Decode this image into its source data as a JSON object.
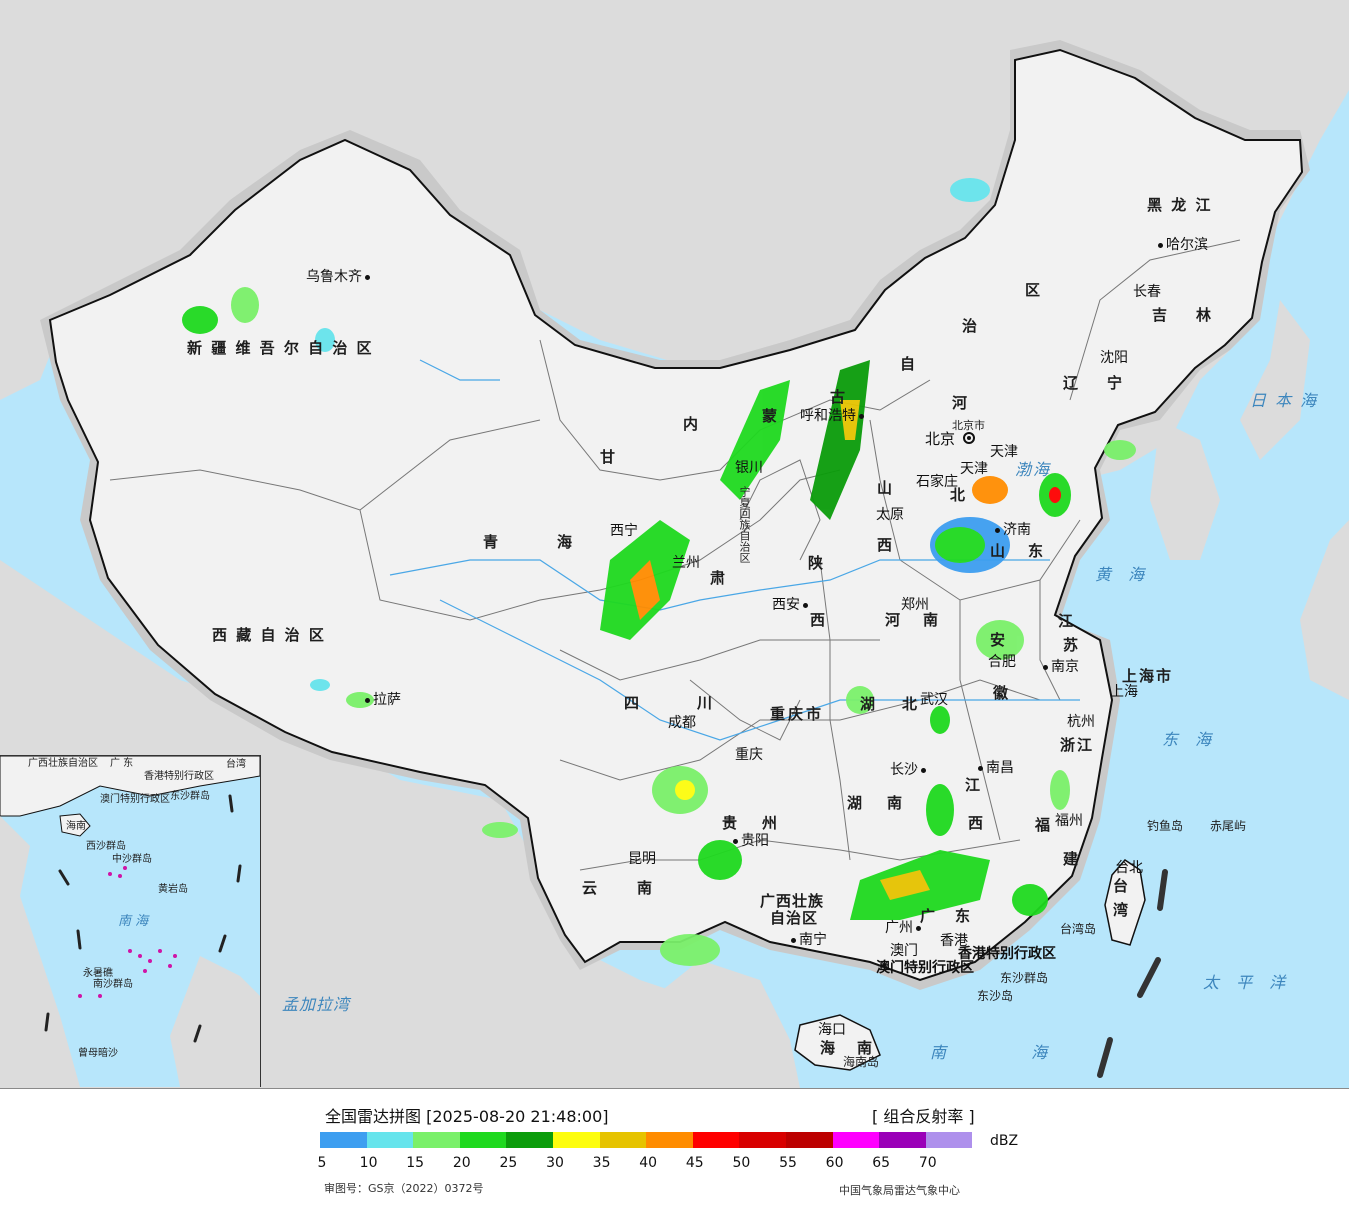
{
  "map": {
    "regions": {
      "xinjiang": "新 疆 维 吾 尔 自 治 区",
      "xizang": "西 藏 自 治 区",
      "qinghai_1": "青",
      "qinghai_2": "海",
      "gansu_1": "甘",
      "gansu_2": "肃",
      "neimenggu_1": "内",
      "neimenggu_2": "蒙",
      "neimenggu_3": "古",
      "neimenggu_4": "自",
      "neimenggu_5": "治",
      "neimenggu_6": "区",
      "ningxia": "宁夏回族自治区",
      "shaanxi_1": "陕",
      "shaanxi_2": "西",
      "shanxi_1": "山",
      "shanxi_2": "西",
      "hebei_1": "河",
      "hebei_2": "北",
      "shandong_1": "山",
      "shandong_2": "东",
      "henan_1": "河",
      "henan_2": "南",
      "sichuan_1": "四",
      "sichuan_2": "川",
      "chongqing": "重庆市",
      "hubei_1": "湖",
      "hubei_2": "北",
      "hunan_1": "湖",
      "hunan_2": "南",
      "guizhou_1": "贵",
      "guizhou_2": "州",
      "yunnan_1": "云",
      "yunnan_2": "南",
      "guangxi_1": "广西壮族",
      "guangxi_2": "自治区",
      "guangdong_1": "广",
      "guangdong_2": "东",
      "jiangxi_1": "江",
      "jiangxi_2": "西",
      "fujian_1": "福",
      "fujian_2": "建",
      "zhejiang": "浙江",
      "anhui_1": "安",
      "anhui_2": "徽",
      "jiangsu_1": "江",
      "jiangsu_2": "苏",
      "shanghai": "上海市",
      "liaoning_1": "辽",
      "liaoning_2": "宁",
      "jilin_1": "吉",
      "jilin_2": "林",
      "heilongjiang": "黑 龙 江",
      "hainan_1": "海",
      "hainan_2": "南",
      "taiwan_1": "台",
      "taiwan_2": "湾",
      "tianjin": "天津",
      "beijing": "北京",
      "beijing_small": "北京市",
      "hk_sar": "香港特别行政区",
      "macau_sar": "澳门特别行政区"
    },
    "cities": {
      "urumqi": "乌鲁木齐",
      "lhasa": "拉萨",
      "xining": "西宁",
      "lanzhou": "兰州",
      "yinchuan": "银川",
      "huhehaote": "呼和浩特",
      "shijiazhuang": "石家庄",
      "taiyuan": "太原",
      "jinan": "济南",
      "zhengzhou": "郑州",
      "xian": "西安",
      "chengdu": "成都",
      "chongqing": "重庆",
      "wuhan": "武汉",
      "hefei": "合肥",
      "nanjing": "南京",
      "shanghai": "上海",
      "hangzhou": "杭州",
      "nanchang": "南昌",
      "changsha": "长沙",
      "guiyang": "贵阳",
      "kunming": "昆明",
      "nanning": "南宁",
      "guangzhou": "广州",
      "hongkong": "香港",
      "macau": "澳门",
      "fuzhou": "福州",
      "taibei": "台北",
      "haikou": "海口",
      "shenyang": "沈阳",
      "changchun": "长春",
      "haerbin": "哈尔滨",
      "tianjin_city": "天津"
    },
    "islands": {
      "diaoyu": "钓鱼岛",
      "chiwei": "赤尾屿",
      "taiwan_island": "台湾岛",
      "dongsha": "东沙群岛",
      "dongsha_2": "东沙岛",
      "hainan_island": "海南岛"
    },
    "seas": {
      "bohai": "渤海",
      "huanghai": "黄 海",
      "donghai": "东 海",
      "nanhai": "南 海",
      "taipingyang": "太 平 洋",
      "ribenhai": "日 本 海",
      "mengjiala": "孟加拉湾"
    }
  },
  "inset": {
    "labels": {
      "guangdong": "广 东",
      "hk": "香港特别行政区",
      "macau": "澳门特别行政区",
      "dongsha": "东沙群岛",
      "taiwan": "台湾",
      "hainan": "海南",
      "xisha": "西沙群岛",
      "zhongsha": "中沙群岛",
      "huangyan": "黄岩岛",
      "nansha": "南沙群岛",
      "nanhai": "南 海",
      "yongshu": "永暑礁",
      "zengmu": "曾母暗沙",
      "guangxi": "广西壮族自治区"
    }
  },
  "legend": {
    "title": "全国雷达拼图 [2025-08-20 21:48:00]",
    "product": "[ 组合反射率 ]",
    "unit": "dBZ",
    "ticks": [
      "5",
      "10",
      "15",
      "20",
      "25",
      "30",
      "35",
      "40",
      "45",
      "50",
      "55",
      "60",
      "65",
      "70"
    ],
    "colors": [
      "#3d9ef0",
      "#66e4ec",
      "#7af06a",
      "#1fd91f",
      "#0b9c0b",
      "#fdfd0e",
      "#e6c300",
      "#ff8c00",
      "#ff0000",
      "#d80000",
      "#bc0000",
      "#ff00ff",
      "#9a00b8",
      "#ae90ec"
    ],
    "review_number": "审图号：GS京（2022）0372号",
    "producer": "中国气象局雷达气象中心"
  }
}
